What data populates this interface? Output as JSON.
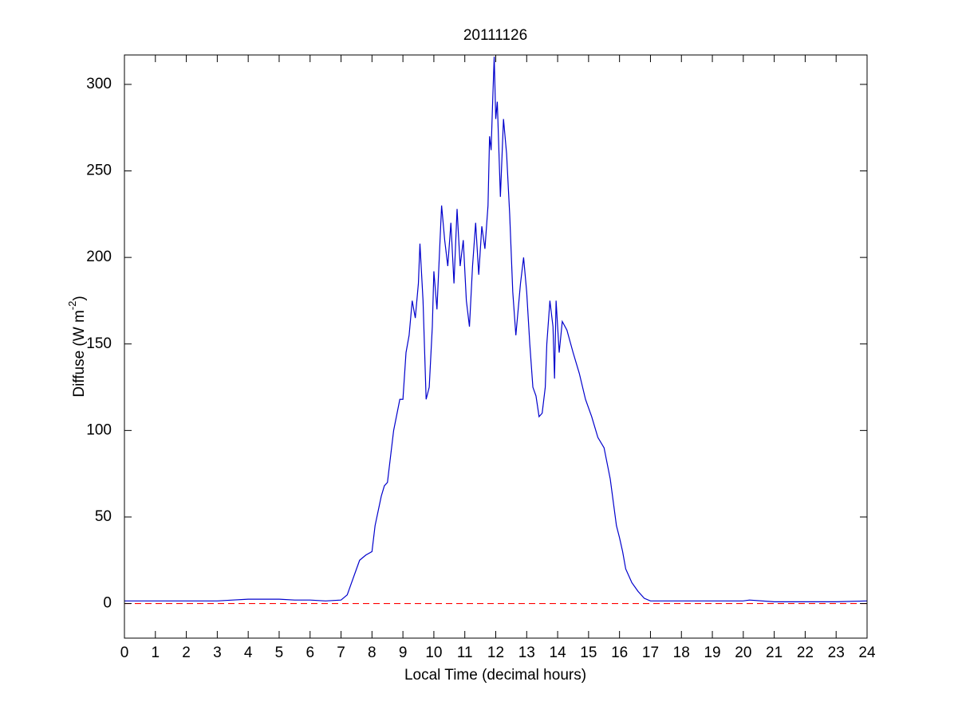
{
  "chart_data": {
    "type": "line",
    "title": "20111126",
    "x_label": "Local Time (decimal hours)",
    "y_label": [
      "Diffuse (W m",
      "-2",
      ")"
    ],
    "xlim": [
      0,
      24
    ],
    "ylim": [
      -20,
      317
    ],
    "xticks": [
      0,
      1,
      2,
      3,
      4,
      5,
      6,
      7,
      8,
      9,
      10,
      11,
      12,
      13,
      14,
      15,
      16,
      17,
      18,
      19,
      20,
      21,
      22,
      23,
      24
    ],
    "yticks": [
      0,
      50,
      100,
      150,
      200,
      250,
      300
    ],
    "grid": false,
    "reference_line": {
      "value": 0,
      "color": "#ff0000",
      "style": "dashed"
    },
    "x": [
      0,
      1,
      2,
      3,
      3.5,
      4,
      5,
      5.5,
      6,
      6.5,
      7,
      7.2,
      7.4,
      7.6,
      7.8,
      8.0,
      8.1,
      8.3,
      8.4,
      8.5,
      8.7,
      8.9,
      9.0,
      9.1,
      9.2,
      9.3,
      9.4,
      9.5,
      9.55,
      9.65,
      9.75,
      9.85,
      9.95,
      10.0,
      10.1,
      10.2,
      10.25,
      10.35,
      10.45,
      10.55,
      10.65,
      10.75,
      10.85,
      10.95,
      11.05,
      11.15,
      11.25,
      11.35,
      11.45,
      11.55,
      11.65,
      11.75,
      11.8,
      11.85,
      11.9,
      11.95,
      12.0,
      12.05,
      12.15,
      12.25,
      12.35,
      12.45,
      12.55,
      12.65,
      12.8,
      12.9,
      13.0,
      13.1,
      13.2,
      13.3,
      13.4,
      13.5,
      13.6,
      13.65,
      13.75,
      13.85,
      13.9,
      13.95,
      14.05,
      14.15,
      14.3,
      14.5,
      14.7,
      14.9,
      15.1,
      15.3,
      15.5,
      15.7,
      15.9,
      16.0,
      16.1,
      16.2,
      16.4,
      16.6,
      16.8,
      17.0,
      18,
      19,
      20,
      20.2,
      21,
      22,
      23,
      24
    ],
    "series": [
      {
        "color": "#0000cc",
        "values": [
          1.5,
          1.5,
          1.5,
          1.5,
          2,
          2.5,
          2.5,
          2,
          2,
          1.5,
          2,
          5,
          15,
          25,
          28,
          30,
          45,
          62,
          68,
          70,
          100,
          118,
          118,
          145,
          155,
          175,
          165,
          185,
          208,
          175,
          118,
          125,
          160,
          192,
          170,
          210,
          230,
          210,
          195,
          220,
          185,
          228,
          195,
          210,
          175,
          160,
          195,
          220,
          190,
          218,
          205,
          230,
          270,
          262,
          290,
          316,
          280,
          290,
          235,
          280,
          260,
          225,
          180,
          155,
          185,
          200,
          180,
          150,
          125,
          120,
          108,
          110,
          125,
          150,
          175,
          160,
          130,
          175,
          145,
          163,
          158,
          145,
          133,
          118,
          108,
          96,
          90,
          72,
          45,
          38,
          30,
          20,
          12,
          7,
          3,
          1.5,
          1.5,
          1.5,
          1.5,
          2,
          1,
          1,
          1,
          1.5
        ]
      }
    ]
  }
}
